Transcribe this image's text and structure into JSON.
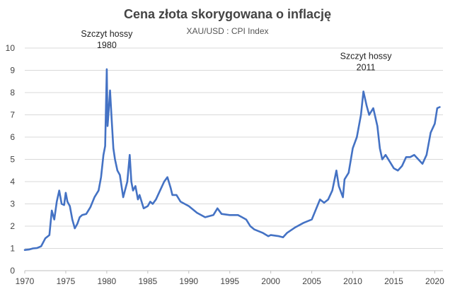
{
  "chart_data": {
    "type": "line",
    "title": "Cena złota skorygowana o inflację",
    "subtitle": "XAU/USD  :  CPI Index",
    "xlabel": "",
    "ylabel": "",
    "xlim": [
      1970,
      2021
    ],
    "ylim": [
      0,
      10
    ],
    "x_ticks": [
      "1970",
      "1975",
      "1980",
      "1985",
      "1990",
      "1995",
      "2000",
      "2005",
      "2010",
      "2015",
      "2020"
    ],
    "y_ticks": [
      "0",
      "1",
      "2",
      "3",
      "4",
      "5",
      "6",
      "7",
      "8",
      "9",
      "10"
    ],
    "grid": "horizontal",
    "legend": "none",
    "line_color": "#4472c4",
    "annotations": [
      {
        "lines": [
          "Szczyt hossy",
          "1980"
        ],
        "x": 1980.0,
        "y": 9.05
      },
      {
        "lines": [
          "Szczyt hossy",
          "2011"
        ],
        "x": 2011.6,
        "y": 8.05
      }
    ],
    "series": [
      {
        "x": [
          1970.0,
          1970.5,
          1971.0,
          1971.5,
          1972.0,
          1972.5,
          1973.0,
          1973.3,
          1973.6,
          1973.9,
          1974.2,
          1974.5,
          1974.8,
          1975.0,
          1975.2,
          1975.5,
          1975.8,
          1976.1,
          1976.4,
          1976.7,
          1977.0,
          1977.5,
          1978.0,
          1978.5,
          1979.0,
          1979.3,
          1979.6,
          1979.8,
          1980.0,
          1980.1,
          1980.2,
          1980.4,
          1980.6,
          1980.8,
          1981.0,
          1981.3,
          1981.6,
          1982.0,
          1982.5,
          1982.8,
          1983.0,
          1983.2,
          1983.5,
          1983.8,
          1984.0,
          1984.5,
          1985.0,
          1985.3,
          1985.6,
          1986.0,
          1986.5,
          1987.0,
          1987.4,
          1987.8,
          1988.0,
          1988.5,
          1989.0,
          1990.0,
          1990.5,
          1991.0,
          1992.0,
          1993.0,
          1993.5,
          1994.0,
          1995.0,
          1996.0,
          1996.5,
          1997.0,
          1997.5,
          1998.0,
          1999.0,
          1999.7,
          2000.0,
          2001.0,
          2001.5,
          2002.0,
          2003.0,
          2004.0,
          2005.0,
          2006.0,
          2006.5,
          2007.0,
          2007.5,
          2008.0,
          2008.3,
          2008.8,
          2009.0,
          2009.5,
          2010.0,
          2010.5,
          2011.0,
          2011.3,
          2011.7,
          2012.0,
          2012.5,
          2013.0,
          2013.3,
          2013.6,
          2014.0,
          2014.5,
          2015.0,
          2015.5,
          2016.0,
          2016.5,
          2017.0,
          2017.5,
          2018.0,
          2018.5,
          2019.0,
          2019.5,
          2020.0,
          2020.3,
          2020.6
        ],
        "values": [
          0.93,
          0.95,
          1.0,
          1.02,
          1.1,
          1.45,
          1.6,
          2.7,
          2.3,
          3.1,
          3.6,
          3.0,
          2.95,
          3.5,
          3.1,
          2.9,
          2.3,
          1.9,
          2.1,
          2.4,
          2.5,
          2.55,
          2.85,
          3.3,
          3.6,
          4.2,
          5.2,
          5.6,
          9.05,
          6.5,
          7.0,
          8.1,
          6.8,
          5.5,
          5.0,
          4.5,
          4.3,
          3.3,
          4.0,
          5.2,
          4.0,
          3.6,
          3.8,
          3.2,
          3.4,
          2.8,
          2.9,
          3.1,
          3.0,
          3.2,
          3.6,
          4.0,
          4.2,
          3.7,
          3.4,
          3.4,
          3.1,
          2.9,
          2.75,
          2.6,
          2.4,
          2.5,
          2.8,
          2.55,
          2.5,
          2.5,
          2.4,
          2.3,
          2.0,
          1.85,
          1.7,
          1.55,
          1.6,
          1.55,
          1.5,
          1.7,
          1.95,
          2.15,
          2.3,
          3.2,
          3.05,
          3.2,
          3.6,
          4.5,
          3.8,
          3.3,
          4.1,
          4.4,
          5.5,
          6.0,
          7.0,
          8.05,
          7.4,
          7.0,
          7.3,
          6.5,
          5.5,
          5.0,
          5.2,
          4.9,
          4.6,
          4.5,
          4.7,
          5.1,
          5.1,
          5.2,
          5.0,
          4.8,
          5.2,
          6.2,
          6.6,
          7.3,
          7.35
        ]
      }
    ]
  }
}
